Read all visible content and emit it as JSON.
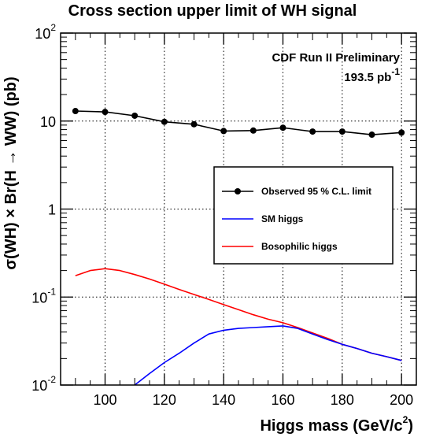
{
  "chart_data": {
    "type": "line",
    "title": "Cross section upper limit of WH signal",
    "xlabel": "Higgs mass (GeV/c",
    "xlabel_sup": "2",
    "xlabel_close": ")",
    "ylabel_parts": [
      "σ(WH) × Br(H → WW) (pb)"
    ],
    "xlim": [
      85,
      205
    ],
    "ylim": [
      0.01,
      100
    ],
    "yscale": "log",
    "grid": true,
    "x_ticks": [
      {
        "value": 100,
        "label": "100"
      },
      {
        "value": 120,
        "label": "120"
      },
      {
        "value": 140,
        "label": "140"
      },
      {
        "value": 160,
        "label": "160"
      },
      {
        "value": 180,
        "label": "180"
      },
      {
        "value": 200,
        "label": "200"
      }
    ],
    "y_ticks": [
      {
        "value": 100,
        "base": "10",
        "exp": "2"
      },
      {
        "value": 10,
        "base": "10",
        "exp": ""
      },
      {
        "value": 1,
        "base": "1",
        "exp": ""
      },
      {
        "value": 0.1,
        "base": "10",
        "exp": "-1"
      },
      {
        "value": 0.01,
        "base": "10",
        "exp": "-2"
      }
    ],
    "annotation": {
      "line1": "CDF Run II Preliminary",
      "line2": "193.5 pb",
      "line2_sup": "-1"
    },
    "series": [
      {
        "name": "Observed 95 % C.L. limit",
        "color": "#000000",
        "markers": true,
        "x": [
          90,
          100,
          110,
          120,
          130,
          140,
          150,
          160,
          170,
          180,
          190,
          200
        ],
        "y": [
          13.0,
          12.7,
          11.5,
          9.8,
          9.2,
          7.7,
          7.8,
          8.4,
          7.6,
          7.6,
          7.0,
          7.4
        ]
      },
      {
        "name": "SM higgs",
        "color": "#0000ff",
        "markers": false,
        "x": [
          110,
          115,
          120,
          125,
          130,
          135,
          140,
          145,
          150,
          155,
          160,
          165,
          170,
          175,
          180,
          185,
          190,
          195,
          200
        ],
        "y": [
          0.01,
          0.0135,
          0.018,
          0.023,
          0.03,
          0.038,
          0.042,
          0.044,
          0.045,
          0.046,
          0.047,
          0.044,
          0.038,
          0.033,
          0.029,
          0.026,
          0.023,
          0.021,
          0.019
        ]
      },
      {
        "name": "Bosophilic higgs",
        "color": "#ff0000",
        "markers": false,
        "x": [
          90,
          95,
          100,
          105,
          110,
          115,
          120,
          125,
          130,
          135,
          140,
          145,
          150,
          155,
          160,
          165,
          170,
          175,
          180,
          185,
          190,
          195,
          200
        ],
        "y": [
          0.175,
          0.2,
          0.21,
          0.2,
          0.18,
          0.16,
          0.14,
          0.122,
          0.107,
          0.094,
          0.082,
          0.072,
          0.063,
          0.056,
          0.051,
          0.045,
          0.039,
          0.034,
          0.029,
          0.026,
          0.023,
          0.021,
          0.019
        ]
      }
    ]
  }
}
